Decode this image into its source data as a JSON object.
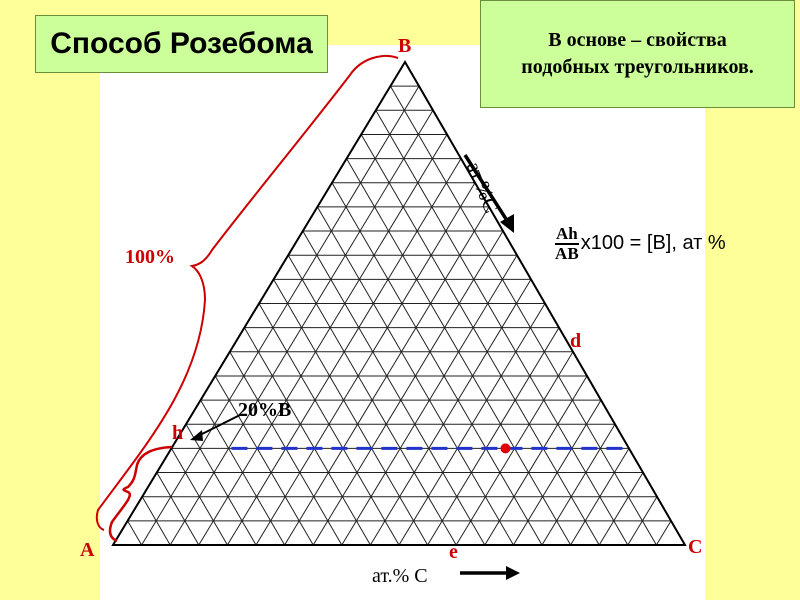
{
  "title": "Способ Розебома",
  "note": {
    "line1": "В основе – свойства",
    "line2": "подобных треугольников."
  },
  "vertices": {
    "top": "B",
    "left": "A",
    "right": "C"
  },
  "points": {
    "d": "d",
    "e": "e",
    "h": "h"
  },
  "brace_label": "100%",
  "composition_label": "20%B",
  "formula": {
    "numerator": "Ah",
    "denominator": "AB",
    "rest": "x100 =  [B], ат %"
  },
  "edge_axis_label": "ат.%С",
  "bottom_axis_label": "ат.% С",
  "grid_divisions": 20,
  "colors": {
    "background": "#ffff99",
    "box_fill": "#ccff99",
    "label_red": "#cc0000",
    "dashed_line": "#2233cc",
    "point": "#dd0000"
  },
  "construction_line_level_percent": 20
}
